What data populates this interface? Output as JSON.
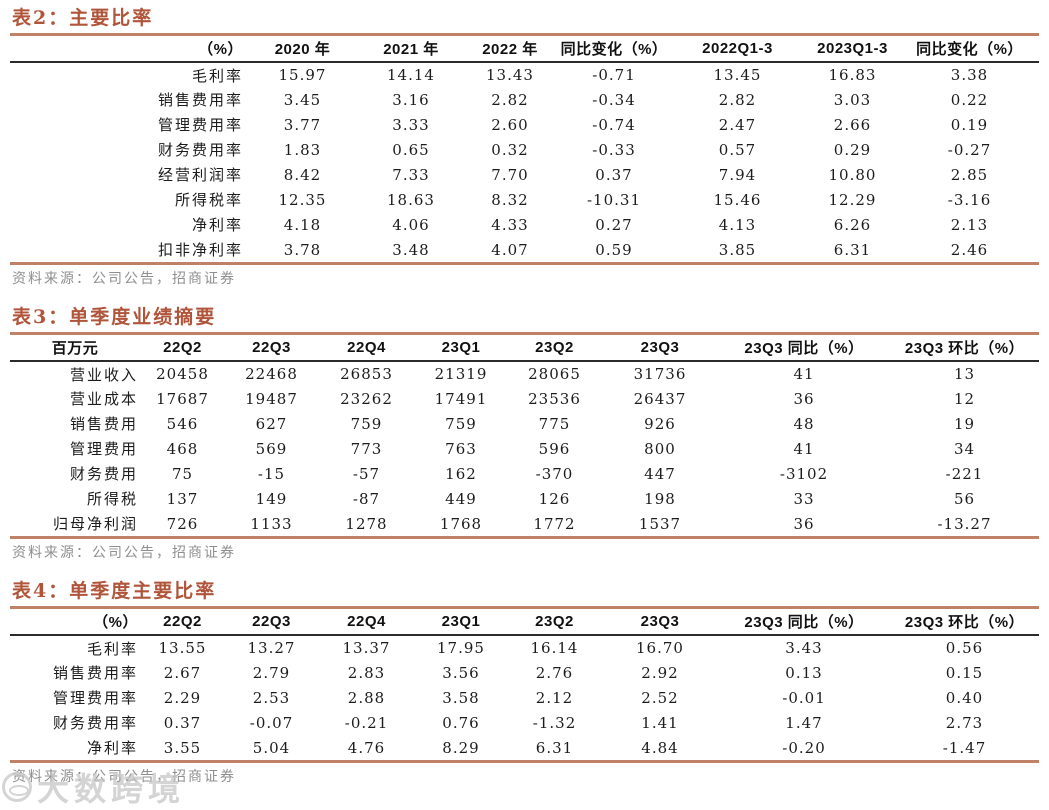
{
  "colors": {
    "accent": "#B0543A",
    "rule": "#C08266",
    "rule-dark": "#2B2B2B",
    "text": "#1C1C1C",
    "muted": "#8F8F8F",
    "watermark": "#C6C6C6"
  },
  "tables": [
    {
      "title": "表2：主要比率",
      "columns": [
        "（%）",
        "2020 年",
        "2021 年",
        "2022 年",
        "同比变化（%）",
        "2022Q1-3",
        "2023Q1-3",
        "同比变化（%）"
      ],
      "rows": [
        [
          "毛利率",
          "15.97",
          "14.14",
          "13.43",
          "-0.71",
          "13.45",
          "16.83",
          "3.38"
        ],
        [
          "销售费用率",
          "3.45",
          "3.16",
          "2.82",
          "-0.34",
          "2.82",
          "3.03",
          "0.22"
        ],
        [
          "管理费用率",
          "3.77",
          "3.33",
          "2.60",
          "-0.74",
          "2.47",
          "2.66",
          "0.19"
        ],
        [
          "财务费用率",
          "1.83",
          "0.65",
          "0.32",
          "-0.33",
          "0.57",
          "0.29",
          "-0.27"
        ],
        [
          "经营利润率",
          "8.42",
          "7.33",
          "7.70",
          "0.37",
          "7.94",
          "10.80",
          "2.85"
        ],
        [
          "所得税率",
          "12.35",
          "18.63",
          "8.32",
          "-10.31",
          "15.46",
          "12.29",
          "-3.16"
        ],
        [
          "净利率",
          "4.18",
          "4.06",
          "4.33",
          "0.27",
          "4.13",
          "6.26",
          "2.13"
        ],
        [
          "扣非净利率",
          "3.78",
          "3.48",
          "4.07",
          "0.59",
          "3.85",
          "6.31",
          "2.46"
        ]
      ],
      "source": "资料来源：公司公告，招商证券"
    },
    {
      "title": "表3：单季度业绩摘要",
      "columns": [
        "百万元",
        "22Q2",
        "22Q3",
        "22Q4",
        "23Q1",
        "23Q2",
        "23Q3",
        "23Q3 同比（%）",
        "23Q3 环比（%）"
      ],
      "rows": [
        [
          "营业收入",
          "20458",
          "22468",
          "26853",
          "21319",
          "28065",
          "31736",
          "41",
          "13"
        ],
        [
          "营业成本",
          "17687",
          "19487",
          "23262",
          "17491",
          "23536",
          "26437",
          "36",
          "12"
        ],
        [
          "销售费用",
          "546",
          "627",
          "759",
          "759",
          "775",
          "926",
          "48",
          "19"
        ],
        [
          "管理费用",
          "468",
          "569",
          "773",
          "763",
          "596",
          "800",
          "41",
          "34"
        ],
        [
          "财务费用",
          "75",
          "-15",
          "-57",
          "162",
          "-370",
          "447",
          "-3102",
          "-221"
        ],
        [
          "所得税",
          "137",
          "149",
          "-87",
          "449",
          "126",
          "198",
          "33",
          "56"
        ],
        [
          "归母净利润",
          "726",
          "1133",
          "1278",
          "1768",
          "1772",
          "1537",
          "36",
          "-13.27"
        ]
      ],
      "source": "资料来源：公司公告，招商证券"
    },
    {
      "title": "表4：单季度主要比率",
      "columns": [
        "（%）",
        "22Q2",
        "22Q3",
        "22Q4",
        "23Q1",
        "23Q2",
        "23Q3",
        "23Q3 同比（%）",
        "23Q3 环比（%）"
      ],
      "rows": [
        [
          "毛利率",
          "13.55",
          "13.27",
          "13.37",
          "17.95",
          "16.14",
          "16.70",
          "3.43",
          "0.56"
        ],
        [
          "销售费用率",
          "2.67",
          "2.79",
          "2.83",
          "3.56",
          "2.76",
          "2.92",
          "0.13",
          "0.15"
        ],
        [
          "管理费用率",
          "2.29",
          "2.53",
          "2.88",
          "3.58",
          "2.12",
          "2.52",
          "-0.01",
          "0.40"
        ],
        [
          "财务费用率",
          "0.37",
          "-0.07",
          "-0.21",
          "0.76",
          "-1.32",
          "1.41",
          "1.47",
          "2.73"
        ],
        [
          "净利率",
          "3.55",
          "5.04",
          "4.76",
          "8.29",
          "6.31",
          "4.84",
          "-0.20",
          "-1.47"
        ]
      ],
      "source": "资料来源：公司公告，招商证券"
    }
  ],
  "watermark": {
    "text": "大数跨境",
    "logo_icon": "globe-logo"
  }
}
